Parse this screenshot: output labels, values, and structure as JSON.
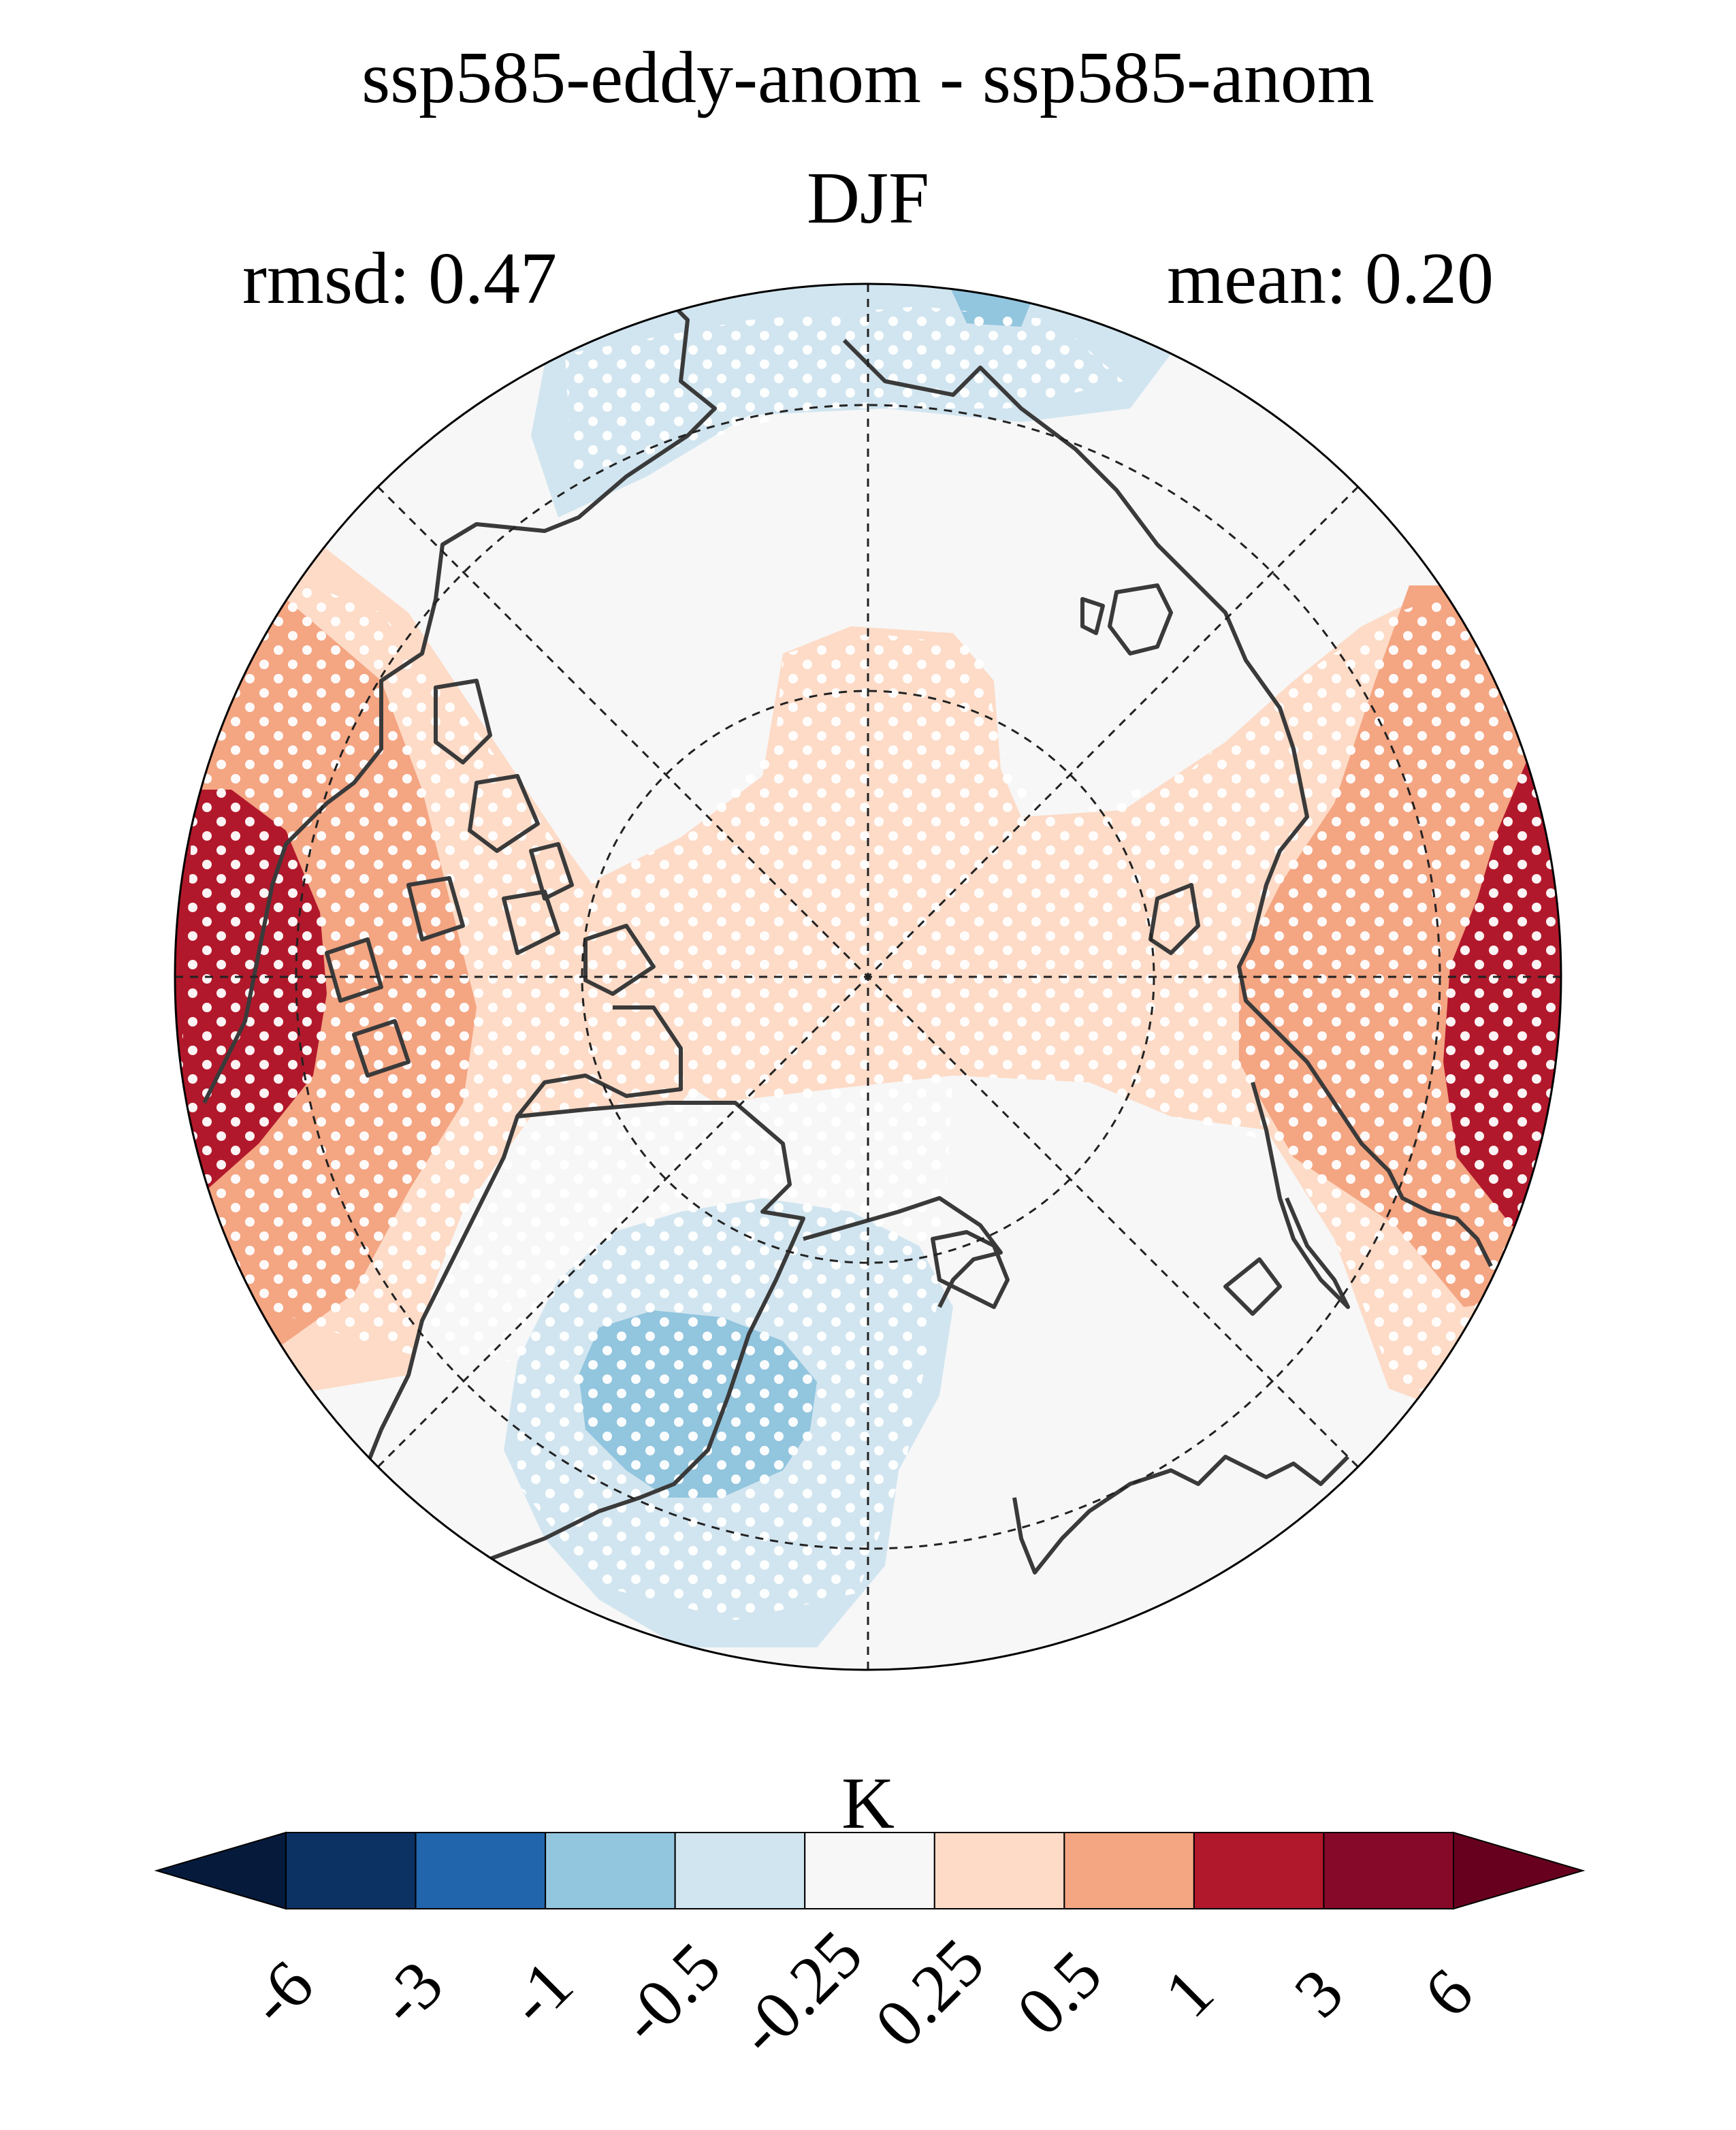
{
  "header": {
    "title": "ssp585-eddy-anom - ssp585-anom",
    "season": "DJF",
    "rmsd_label": "rmsd: 0.47",
    "mean_label": "mean: 0.20"
  },
  "map": {
    "projection": "north-polar-stereographic",
    "stippling": "white dots mark significant regions",
    "field_levels_approx": {
      "far_east_and_far_west_edges": "1 to 3",
      "eastern_canada_greenland_and_central_siberia": "0.5 to 1",
      "pole_and_surroundings": "0.25 to 0.5",
      "bering_alaska": "-1 to -0.5",
      "bering_surroundings": "-0.5 to -0.25",
      "top_lobe": "-0.5 to -0.25"
    }
  },
  "colorbar": {
    "unit": "K",
    "extend": "both",
    "ticks": [
      "-6",
      "-3",
      "-1",
      "-0.5",
      "-0.25",
      "0.25",
      "0.5",
      "1",
      "3",
      "6"
    ],
    "colors": {
      "under": "#061b3c",
      "bins": [
        "#0b3263",
        "#2166ac",
        "#92c5de",
        "#d1e5f0",
        "#f7f7f7",
        "#fddbc7",
        "#f4a582",
        "#b2182b",
        "#87092a"
      ],
      "over": "#67001f"
    }
  }
}
